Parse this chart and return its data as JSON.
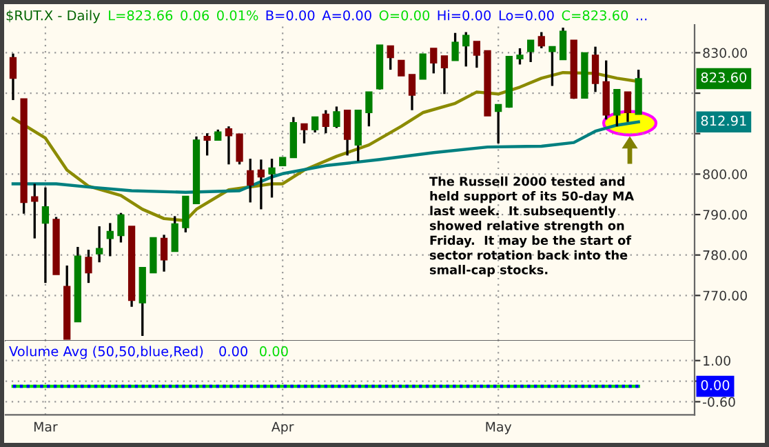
{
  "chart_data": [
    {
      "type": "candlestick",
      "title": "$RUT.X - Daily",
      "categories": [
        null,
        null,
        null,
        null,
        null,
        null,
        null,
        null,
        null,
        null,
        null,
        null,
        null,
        null,
        null,
        null,
        null,
        null,
        null,
        null,
        null,
        null,
        null,
        null,
        null,
        null,
        null,
        null,
        null,
        null,
        null,
        null,
        null,
        null,
        null,
        null,
        null,
        null,
        null,
        null,
        null,
        null,
        null,
        null,
        null,
        null,
        null,
        null,
        null,
        null,
        null,
        null,
        null,
        null,
        null,
        null,
        null,
        null,
        null
      ],
      "ohlc": [
        [
          828.8,
          829.8,
          818.3,
          823.7
        ],
        [
          818.6,
          818.6,
          790.2,
          793.0
        ],
        [
          794.4,
          797.6,
          784.1,
          793.3
        ],
        [
          787.9,
          796.7,
          773.1,
          791.9
        ],
        [
          788.8,
          789.4,
          775.2,
          775.2
        ],
        [
          772.2,
          777.4,
          759.2,
          759.2
        ],
        [
          763.5,
          782.0,
          763.5,
          779.7
        ],
        [
          779.4,
          781.3,
          773.1,
          775.6
        ],
        [
          780.3,
          787.1,
          778.2,
          781.6
        ],
        [
          784.1,
          787.9,
          779.7,
          785.8
        ],
        [
          784.8,
          790.4,
          783.1,
          789.9
        ],
        [
          787.1,
          787.1,
          767.2,
          768.8
        ],
        [
          768.2,
          776.9,
          760.0,
          776.9
        ],
        [
          775.6,
          784.3,
          775.6,
          784.3
        ],
        [
          784.1,
          785.0,
          775.9,
          778.8
        ],
        [
          780.9,
          789.6,
          780.9,
          787.7
        ],
        [
          786.8,
          794.5,
          785.6,
          794.5
        ],
        [
          792.7,
          809.3,
          792.7,
          808.4
        ],
        [
          809.3,
          810.1,
          804.6,
          808.4
        ],
        [
          808.4,
          811.0,
          808.4,
          810.4
        ],
        [
          811.2,
          811.8,
          802.4,
          809.5
        ],
        [
          809.9,
          809.9,
          802.4,
          803.2
        ],
        [
          800.8,
          803.8,
          793.0,
          797.3
        ],
        [
          801.0,
          803.6,
          791.3,
          799.3
        ],
        [
          800.1,
          803.8,
          794.2,
          801.5
        ],
        [
          802.1,
          804.1,
          802.1,
          804.1
        ],
        [
          804.1,
          814.1,
          804.1,
          812.7
        ],
        [
          812.4,
          812.4,
          807.6,
          811.0
        ],
        [
          811.0,
          814.1,
          810.3,
          814.1
        ],
        [
          814.8,
          815.8,
          810.1,
          811.8
        ],
        [
          811.8,
          816.7,
          811.4,
          815.4
        ],
        [
          815.8,
          815.8,
          804.6,
          808.6
        ],
        [
          807.2,
          815.8,
          803.2,
          815.8
        ],
        [
          815.2,
          820.3,
          811.8,
          820.3
        ],
        [
          821.1,
          831.9,
          820.9,
          831.9
        ],
        [
          831.7,
          831.7,
          825.8,
          828.8
        ],
        [
          828.1,
          828.1,
          824.3,
          824.3
        ],
        [
          824.6,
          824.6,
          815.8,
          819.5
        ],
        [
          823.5,
          829.7,
          823.5,
          829.7
        ],
        [
          831.1,
          831.1,
          824.9,
          827.5
        ],
        [
          829.2,
          829.2,
          819.8,
          826.3
        ],
        [
          828.1,
          834.9,
          828.1,
          832.6
        ],
        [
          831.7,
          835.1,
          826.6,
          834.3
        ],
        [
          832.8,
          832.8,
          826.3,
          829.4
        ],
        [
          830.5,
          830.5,
          814.4,
          814.4
        ],
        [
          815.5,
          817.2,
          807.6,
          817.2
        ],
        [
          816.6,
          829.1,
          816.4,
          829.1
        ],
        [
          828.5,
          831.1,
          827.1,
          829.4
        ],
        [
          830.3,
          833.1,
          827.7,
          833.1
        ],
        [
          834.0,
          835.1,
          831.1,
          831.7
        ],
        [
          830.3,
          831.5,
          821.8,
          831.5
        ],
        [
          828.3,
          836.2,
          828.3,
          835.3
        ],
        [
          833.1,
          833.1,
          818.6,
          818.8
        ],
        [
          818.8,
          830.0,
          818.8,
          830.0
        ],
        [
          829.4,
          831.5,
          820.3,
          822.4
        ],
        [
          822.8,
          828.1,
          813.5,
          814.6
        ],
        [
          814.6,
          820.9,
          811.8,
          820.9
        ],
        [
          820.3,
          820.3,
          812.9,
          815.2
        ],
        [
          814.8,
          825.8,
          814.8,
          823.6
        ]
      ],
      "colors": [
        "#800000",
        "#800000",
        "#800000",
        "#008000",
        "#800000",
        "#800000",
        "#008000",
        "#800000",
        "#008000",
        "#008000",
        "#008000",
        "#800000",
        "#008000",
        "#008000",
        "#800000",
        "#008000",
        "#008000",
        "#008000",
        "#800000",
        "#008000",
        "#800000",
        "#800000",
        "#800000",
        "#800000",
        "#008000",
        "#008000",
        "#008000",
        "#800000",
        "#008000",
        "#800000",
        "#008000",
        "#800000",
        "#008000",
        "#008000",
        "#008000",
        "#800000",
        "#800000",
        "#800000",
        "#008000",
        "#800000",
        "#800000",
        "#008000",
        "#008000",
        "#800000",
        "#800000",
        "#008000",
        "#008000",
        "#008000",
        "#008000",
        "#800000",
        "#008000",
        "#008000",
        "#800000",
        "#008000",
        "#800000",
        "#800000",
        "#008000",
        "#800000",
        "#008000"
      ],
      "series": [
        {
          "type": "line",
          "color": "#8b8b00",
          "values": [
            813.8,
            null,
            null,
            808.9,
            null,
            801.0,
            null,
            797.0,
            null,
            null,
            794.7,
            null,
            791.3,
            null,
            789.0,
            null,
            788.5,
            791.3,
            null,
            null,
            796.1,
            null,
            null,
            null,
            797.6,
            797.6,
            null,
            801.0,
            null,
            null,
            804.4,
            null,
            null,
            807.2,
            null,
            null,
            811.8,
            null,
            815.2,
            null,
            null,
            817.5,
            null,
            820.3,
            null,
            819.8,
            null,
            821.5,
            null,
            823.7,
            null,
            825.1,
            null,
            null,
            824.9,
            null,
            823.7,
            null,
            822.9
          ]
        },
        {
          "type": "line",
          "color": "#008080",
          "values": [
            797.6,
            null,
            null,
            null,
            797.6,
            null,
            null,
            796.8,
            null,
            null,
            null,
            795.9,
            null,
            null,
            null,
            null,
            795.5,
            null,
            null,
            null,
            null,
            795.9,
            null,
            null,
            799.3,
            800.1,
            null,
            null,
            null,
            802.1,
            null,
            null,
            null,
            null,
            803.6,
            null,
            null,
            null,
            null,
            805.3,
            null,
            null,
            null,
            null,
            806.7,
            null,
            null,
            null,
            null,
            806.9,
            null,
            null,
            807.8,
            null,
            810.6,
            null,
            812.1,
            null,
            812.91
          ]
        }
      ],
      "ylim": [
        758.8,
        836.9
      ],
      "yticks": [
        {
          "value": 830,
          "label": "830.00"
        },
        {
          "value": 820,
          "label": null
        },
        {
          "value": 810,
          "label": null
        },
        {
          "value": 800,
          "label": "800.00"
        },
        {
          "value": 790,
          "label": "790.00"
        },
        {
          "value": 780,
          "label": "780.00"
        },
        {
          "value": 770,
          "label": "770.00"
        }
      ],
      "tick_labels": "y",
      "grid": true,
      "annotations": [
        "L=823.66",
        "0.06",
        "0.01%",
        "B=0.00",
        "A=0.00",
        "O=0.00",
        "Hi=0.00",
        "Lo=0.00",
        "C=823.60",
        "...",
        "823.60",
        "812.91",
        "The Russell 2000 tested and\nheld support of its 50-day MA\nlast week.  It subsequently\nshowed relative strength on\nFriday.  It may be the start of\nsector rotation back into the\nsmall-cap stocks."
      ]
    },
    {
      "type": "line",
      "title": "Volume Avg (50,50,blue,Red)",
      "categories": [
        null,
        null,
        null,
        "Mar",
        null,
        null,
        null,
        null,
        null,
        null,
        null,
        null,
        null,
        null,
        null,
        null,
        null,
        null,
        null,
        null,
        null,
        null,
        null,
        null,
        null,
        "Apr",
        null,
        null,
        null,
        null,
        null,
        null,
        null,
        null,
        null,
        null,
        null,
        null,
        null,
        null,
        null,
        null,
        null,
        null,
        null,
        "May",
        null,
        null,
        null,
        null,
        null,
        null,
        null,
        null,
        null,
        null,
        null,
        null,
        null
      ],
      "series": [
        {
          "color": "#00dd00",
          "line_style": "solid",
          "values": [
            0,
            0,
            0,
            0,
            0,
            0,
            0,
            0,
            0,
            0,
            0,
            0,
            0,
            0,
            0,
            0,
            0,
            0,
            0,
            0,
            0,
            0,
            0,
            0,
            0,
            0,
            0,
            0,
            0,
            0,
            0,
            0,
            0,
            0,
            0,
            0,
            0,
            0,
            0,
            0,
            0,
            0,
            0,
            0,
            0,
            0,
            0,
            0,
            0,
            0,
            0,
            0,
            0,
            0,
            0,
            0,
            0,
            0,
            0
          ]
        },
        {
          "color": "#0000ff",
          "line_style": "dotted",
          "values": [
            0,
            0,
            0,
            0,
            0,
            0,
            0,
            0,
            0,
            0,
            0,
            0,
            0,
            0,
            0,
            0,
            0,
            0,
            0,
            0,
            0,
            0,
            0,
            0,
            0,
            0,
            0,
            0,
            0,
            0,
            0,
            0,
            0,
            0,
            0,
            0,
            0,
            0,
            0,
            0,
            0,
            0,
            0,
            0,
            0,
            0,
            0,
            0,
            0,
            0,
            0,
            0,
            0,
            0,
            0,
            0,
            0,
            0,
            0
          ]
        }
      ],
      "ylim": [
        -1.11,
        1.77
      ],
      "yticks": [
        {
          "value": 1,
          "label": "1.00"
        },
        {
          "value": 0.2,
          "label": null
        },
        {
          "value": -0.6,
          "label": "-0.60"
        }
      ],
      "grid": true,
      "annotations": [
        "0.00",
        "0.00",
        "0.00"
      ]
    }
  ]
}
